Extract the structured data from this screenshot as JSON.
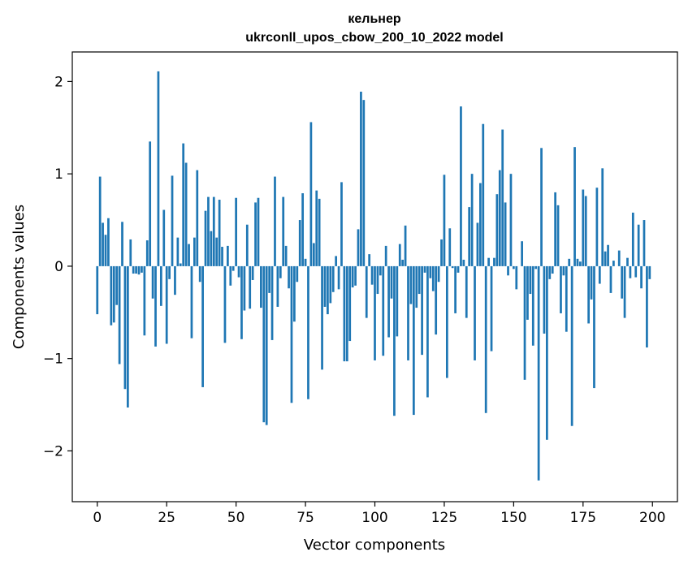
{
  "chart_data": {
    "type": "bar",
    "title": "кельнер",
    "subtitle": "ukrconll_upos_cbow_200_10_2022 model",
    "xlabel": "Vector components",
    "ylabel": "Components values",
    "xlim": [
      -9,
      209
    ],
    "ylim": [
      -2.55,
      2.32
    ],
    "xticks": [
      0,
      25,
      50,
      75,
      100,
      125,
      150,
      175,
      200
    ],
    "yticks": [
      -2,
      -1,
      0,
      1,
      2
    ],
    "ytick_labels": [
      "−2",
      "−1",
      "0",
      "1",
      "2"
    ],
    "grid": false,
    "bar_color": "#1f77b4",
    "x": [
      0,
      1,
      2,
      3,
      4,
      5,
      6,
      7,
      8,
      9,
      10,
      11,
      12,
      13,
      14,
      15,
      16,
      17,
      18,
      19,
      20,
      21,
      22,
      23,
      24,
      25,
      26,
      27,
      28,
      29,
      30,
      31,
      32,
      33,
      34,
      35,
      36,
      37,
      38,
      39,
      40,
      41,
      42,
      43,
      44,
      45,
      46,
      47,
      48,
      49,
      50,
      51,
      52,
      53,
      54,
      55,
      56,
      57,
      58,
      59,
      60,
      61,
      62,
      63,
      64,
      65,
      66,
      67,
      68,
      69,
      70,
      71,
      72,
      73,
      74,
      75,
      76,
      77,
      78,
      79,
      80,
      81,
      82,
      83,
      84,
      85,
      86,
      87,
      88,
      89,
      90,
      91,
      92,
      93,
      94,
      95,
      96,
      97,
      98,
      99,
      100,
      101,
      102,
      103,
      104,
      105,
      106,
      107,
      108,
      109,
      110,
      111,
      112,
      113,
      114,
      115,
      116,
      117,
      118,
      119,
      120,
      121,
      122,
      123,
      124,
      125,
      126,
      127,
      128,
      129,
      130,
      131,
      132,
      133,
      134,
      135,
      136,
      137,
      138,
      139,
      140,
      141,
      142,
      143,
      144,
      145,
      146,
      147,
      148,
      149,
      150,
      151,
      152,
      153,
      154,
      155,
      156,
      157,
      158,
      159,
      160,
      161,
      162,
      163,
      164,
      165,
      166,
      167,
      168,
      169,
      170,
      171,
      172,
      173,
      174,
      175,
      176,
      177,
      178,
      179,
      180,
      181,
      182,
      183,
      184,
      185,
      186,
      187,
      188,
      189,
      190,
      191,
      192,
      193,
      194,
      195,
      196,
      197,
      198,
      199
    ],
    "values": [
      -0.52,
      0.97,
      0.47,
      0.34,
      0.52,
      -0.64,
      -0.61,
      -0.42,
      -1.06,
      0.48,
      -1.33,
      -1.53,
      0.29,
      -0.08,
      -0.08,
      -0.09,
      -0.07,
      -0.75,
      0.28,
      1.35,
      -0.35,
      -0.87,
      2.11,
      -0.43,
      0.61,
      -0.84,
      -0.14,
      0.98,
      -0.31,
      0.31,
      0.03,
      1.33,
      1.12,
      0.24,
      -0.78,
      0.31,
      1.04,
      -0.17,
      -1.31,
      0.6,
      0.75,
      0.38,
      0.75,
      0.31,
      0.72,
      0.21,
      -0.83,
      0.22,
      -0.21,
      -0.05,
      0.74,
      -0.12,
      -0.79,
      -0.48,
      0.45,
      -0.46,
      -0.15,
      0.69,
      0.74,
      -0.45,
      -1.69,
      -1.72,
      -0.29,
      -0.8,
      0.97,
      -0.44,
      -0.13,
      0.75,
      0.22,
      -0.24,
      -1.48,
      -0.6,
      -0.17,
      0.5,
      0.79,
      0.08,
      -1.44,
      1.56,
      0.25,
      0.82,
      0.73,
      -1.12,
      -0.44,
      -0.52,
      -0.4,
      -0.28,
      0.11,
      -0.25,
      0.91,
      -1.03,
      -1.03,
      -0.81,
      -0.23,
      -0.21,
      0.4,
      1.89,
      1.8,
      -0.56,
      0.13,
      -0.2,
      -1.02,
      -0.3,
      -0.1,
      -0.97,
      0.22,
      -0.77,
      -0.35,
      -1.62,
      -0.76,
      0.24,
      0.07,
      0.44,
      -1.02,
      -0.41,
      -1.61,
      -0.45,
      -0.3,
      -0.96,
      -0.07,
      -1.42,
      -0.13,
      -0.27,
      -0.74,
      -0.17,
      0.29,
      0.99,
      -1.21,
      0.41,
      -0.02,
      -0.51,
      -0.07,
      1.73,
      0.07,
      -0.56,
      0.64,
      1.0,
      -1.02,
      0.47,
      0.9,
      1.54,
      -1.59,
      0.09,
      -0.92,
      0.09,
      0.78,
      1.04,
      1.48,
      0.69,
      -0.1,
      1.0,
      -0.03,
      -0.25,
      0.0,
      0.27,
      -1.23,
      -0.58,
      -0.3,
      -0.86,
      -0.03,
      -2.32,
      1.28,
      -0.73,
      -1.88,
      -0.14,
      -0.08,
      0.8,
      0.66,
      -0.51,
      -0.1,
      -0.71,
      0.08,
      -1.73,
      1.29,
      0.08,
      0.05,
      0.83,
      0.76,
      -0.62,
      -0.36,
      -1.32,
      0.85,
      -0.19,
      1.06,
      0.16,
      0.23,
      -0.29,
      0.06,
      0.0,
      0.17,
      -0.35,
      -0.56,
      0.09,
      -0.13,
      0.58,
      -0.12,
      0.45,
      -0.24,
      0.5,
      -0.88,
      -0.14
    ]
  }
}
